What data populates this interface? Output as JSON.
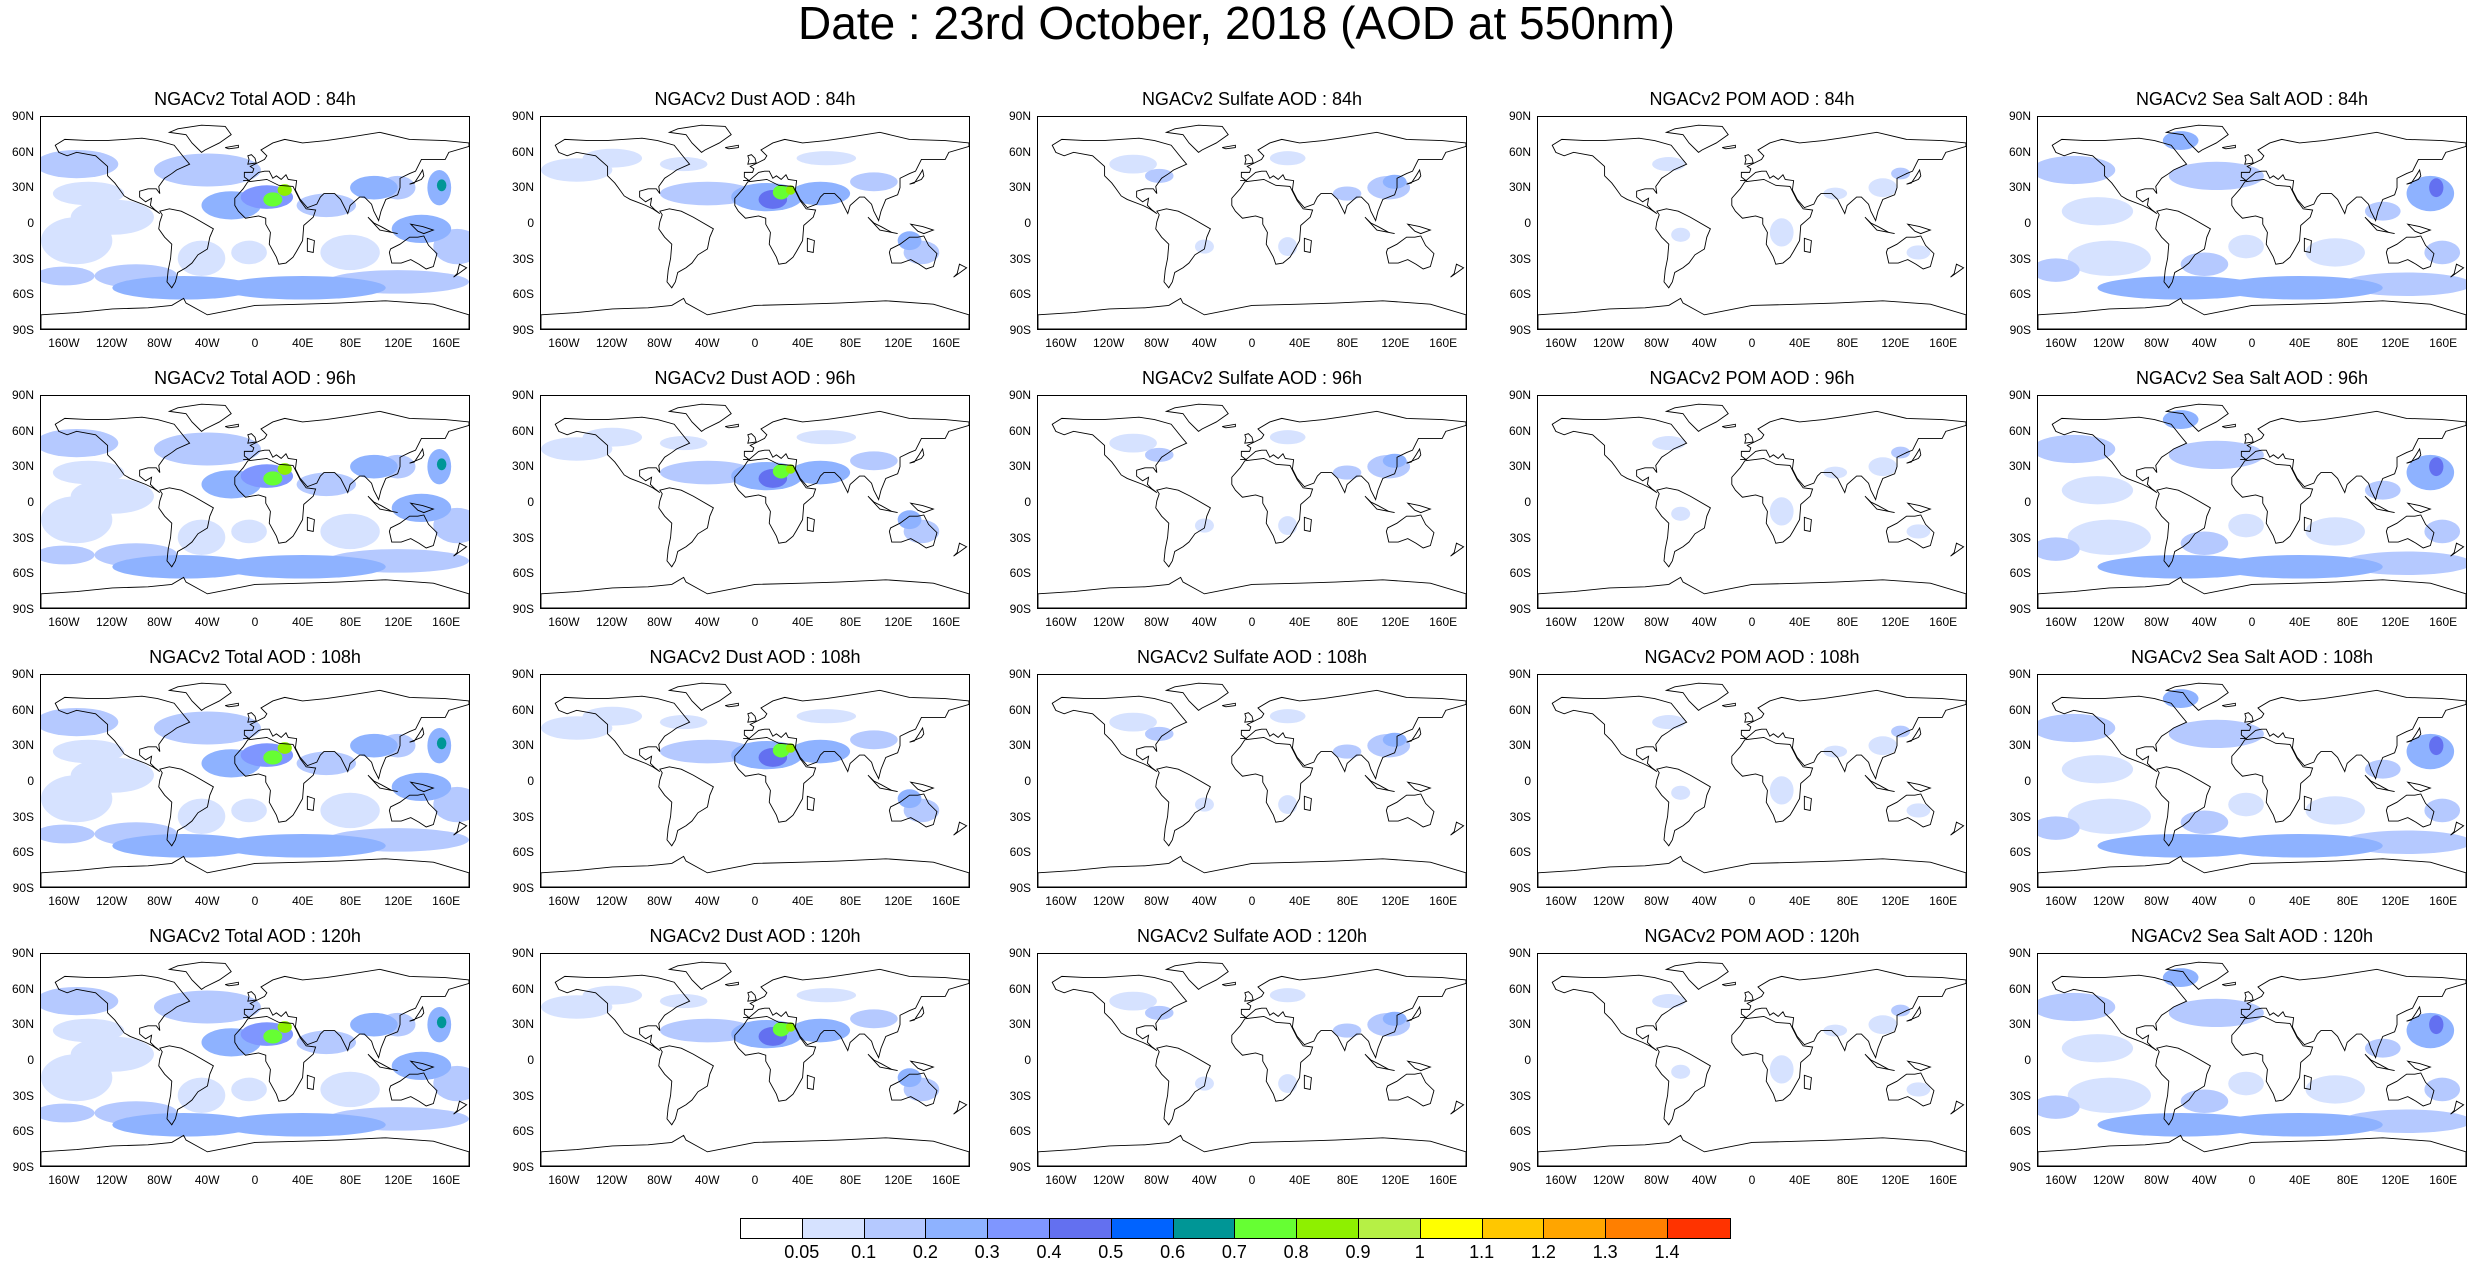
{
  "title": "Date : 23rd October, 2018 (AOD at 550nm)",
  "rows": [
    [
      "NGACv2 Total AOD : 84h",
      "NGACv2 Dust AOD : 84h",
      "NGACv2 Sulfate AOD : 84h",
      "NGACv2 POM AOD : 84h",
      "NGACv2 Sea Salt AOD : 84h"
    ],
    [
      "NGACv2 Total AOD : 96h",
      "NGACv2 Dust AOD : 96h",
      "NGACv2 Sulfate AOD : 96h",
      "NGACv2 POM AOD : 96h",
      "NGACv2 Sea Salt AOD : 96h"
    ],
    [
      "NGACv2 Total AOD : 108h",
      "NGACv2 Dust AOD : 108h",
      "NGACv2 Sulfate AOD : 108h",
      "NGACv2 POM AOD : 108h",
      "NGACv2 Sea Salt AOD : 108h"
    ],
    [
      "NGACv2 Total AOD : 120h",
      "NGACv2 Dust AOD : 120h",
      "NGACv2 Sulfate AOD : 120h",
      "NGACv2 POM AOD : 120h",
      "NGACv2 Sea Salt  AOD : 120h"
    ]
  ],
  "species": [
    "total",
    "dust",
    "sulfate",
    "pom",
    "seasalt"
  ],
  "lat_labels": [
    "90N",
    "60N",
    "30N",
    "0",
    "30S",
    "60S",
    "90S"
  ],
  "lon_labels": [
    "160W",
    "120W",
    "80W",
    "40W",
    "0",
    "40E",
    "80E",
    "120E",
    "160E"
  ],
  "colorbar": {
    "labels": [
      "0.05",
      "0.1",
      "0.2",
      "0.3",
      "0.4",
      "0.5",
      "0.6",
      "0.7",
      "0.8",
      "0.9",
      "1",
      "1.1",
      "1.2",
      "1.3",
      "1.4"
    ],
    "colors": [
      "#ffffff",
      "#d6e2ff",
      "#b5c9ff",
      "#8eb2ff",
      "#7f96ff",
      "#6370f0",
      "#0063ff",
      "#009696",
      "#66ff33",
      "#8ef000",
      "#b6f045",
      "#ffff00",
      "#ffc700",
      "#ffa500",
      "#ff7f00",
      "#ff3300"
    ]
  }
}
